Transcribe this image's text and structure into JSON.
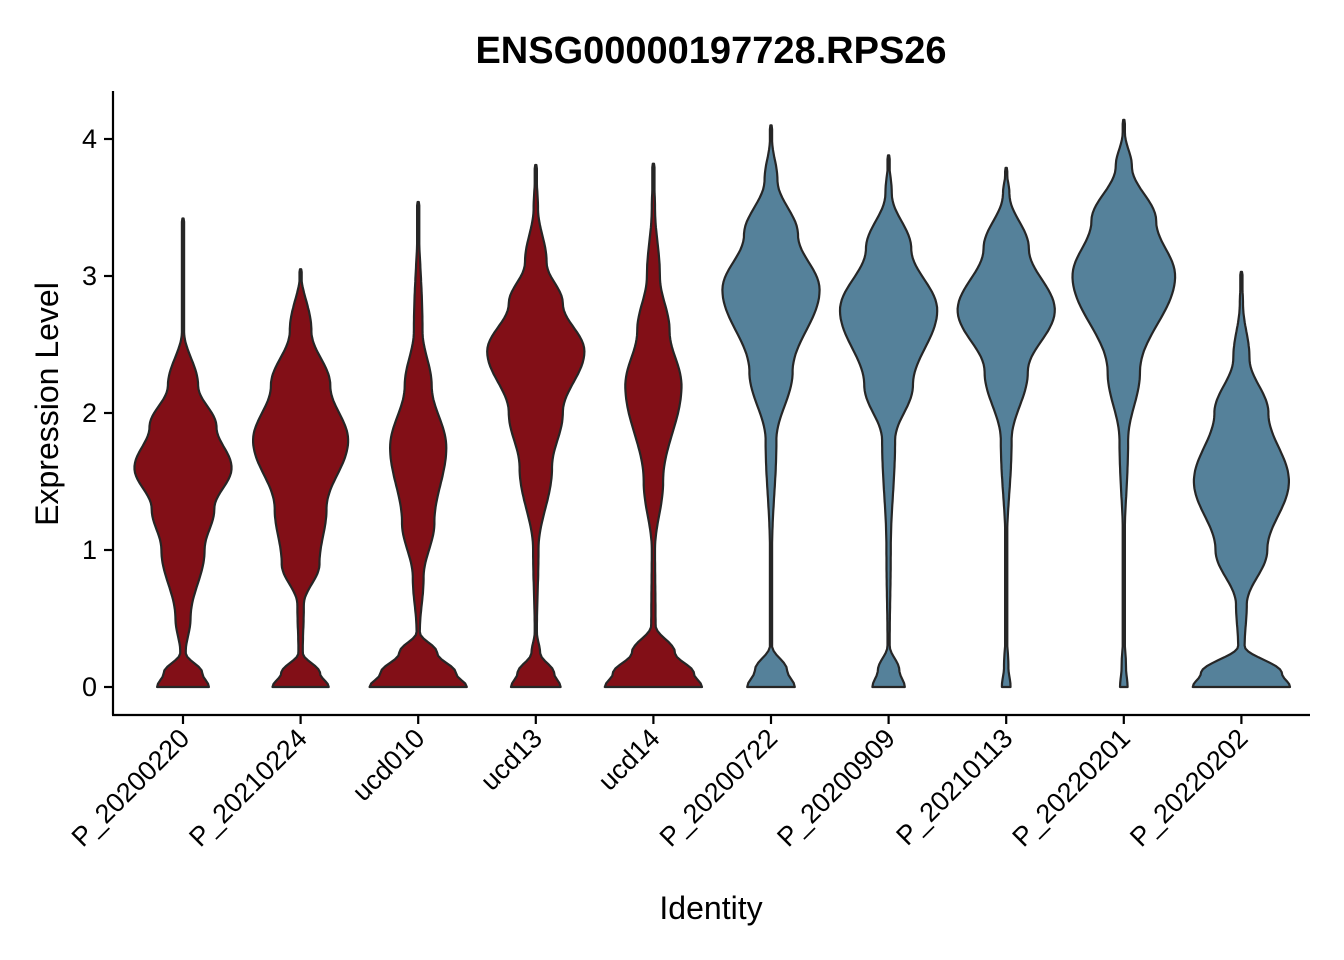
{
  "chart_data": {
    "type": "violin",
    "title": "ENSG00000197728.RPS26",
    "xlabel": "Identity",
    "ylabel": "Expression Level",
    "ylim": [
      -0.2,
      4.35
    ],
    "yticks": [
      0,
      1,
      2,
      3,
      4
    ],
    "grid": false,
    "legend": "none",
    "categories": [
      "P_20200220",
      "P_20210224",
      "ucd010",
      "ucd13",
      "ucd14",
      "P_20200722",
      "P_20200909",
      "P_20210113",
      "P_20220201",
      "P_20220202"
    ],
    "colors": [
      "#820f17",
      "#820f17",
      "#820f17",
      "#820f17",
      "#820f17",
      "#55819a",
      "#55819a",
      "#55819a",
      "#55819a",
      "#55819a"
    ],
    "violins": [
      {
        "max": 3.42,
        "profile": [
          [
            0,
            0.48
          ],
          [
            0.1,
            0.36
          ],
          [
            0.25,
            0.05
          ],
          [
            0.5,
            0.14
          ],
          [
            1.0,
            0.4
          ],
          [
            1.3,
            0.58
          ],
          [
            1.6,
            0.9
          ],
          [
            1.9,
            0.62
          ],
          [
            2.2,
            0.28
          ],
          [
            2.6,
            0.02
          ]
        ]
      },
      {
        "max": 3.05,
        "profile": [
          [
            0,
            0.52
          ],
          [
            0.1,
            0.36
          ],
          [
            0.25,
            0.04
          ],
          [
            0.6,
            0.06
          ],
          [
            0.9,
            0.35
          ],
          [
            1.3,
            0.48
          ],
          [
            1.8,
            0.88
          ],
          [
            2.2,
            0.55
          ],
          [
            2.6,
            0.2
          ]
        ]
      },
      {
        "max": 3.54,
        "profile": [
          [
            0,
            0.9
          ],
          [
            0.1,
            0.7
          ],
          [
            0.25,
            0.35
          ],
          [
            0.4,
            0.03
          ],
          [
            0.8,
            0.1
          ],
          [
            1.2,
            0.3
          ],
          [
            1.75,
            0.52
          ],
          [
            2.2,
            0.25
          ],
          [
            2.6,
            0.08
          ]
        ]
      },
      {
        "max": 3.81,
        "profile": [
          [
            0,
            0.46
          ],
          [
            0.1,
            0.34
          ],
          [
            0.25,
            0.08
          ],
          [
            0.4,
            0.02
          ],
          [
            1.0,
            0.05
          ],
          [
            1.6,
            0.3
          ],
          [
            2.0,
            0.5
          ],
          [
            2.45,
            0.9
          ],
          [
            2.8,
            0.5
          ],
          [
            3.1,
            0.2
          ],
          [
            3.5,
            0.04
          ]
        ]
      },
      {
        "max": 3.82,
        "profile": [
          [
            0,
            0.9
          ],
          [
            0.1,
            0.75
          ],
          [
            0.25,
            0.4
          ],
          [
            0.45,
            0.04
          ],
          [
            1.0,
            0.03
          ],
          [
            1.5,
            0.18
          ],
          [
            2.2,
            0.52
          ],
          [
            2.6,
            0.3
          ],
          [
            3.0,
            0.12
          ],
          [
            3.5,
            0.03
          ]
        ]
      },
      {
        "max": 4.1,
        "profile": [
          [
            0,
            0.44
          ],
          [
            0.12,
            0.3
          ],
          [
            0.3,
            0.02
          ],
          [
            1.0,
            0.02
          ],
          [
            1.8,
            0.1
          ],
          [
            2.3,
            0.4
          ],
          [
            2.9,
            0.9
          ],
          [
            3.3,
            0.5
          ],
          [
            3.7,
            0.12
          ],
          [
            4.0,
            0.02
          ]
        ]
      },
      {
        "max": 3.88,
        "profile": [
          [
            0,
            0.3
          ],
          [
            0.12,
            0.2
          ],
          [
            0.3,
            0.02
          ],
          [
            1.0,
            0.04
          ],
          [
            1.8,
            0.12
          ],
          [
            2.2,
            0.45
          ],
          [
            2.75,
            0.9
          ],
          [
            3.2,
            0.42
          ],
          [
            3.6,
            0.06
          ]
        ]
      },
      {
        "max": 3.79,
        "profile": [
          [
            0,
            0.08
          ],
          [
            0.15,
            0.04
          ],
          [
            0.4,
            0.01
          ],
          [
            1.0,
            0.01
          ],
          [
            1.8,
            0.1
          ],
          [
            2.3,
            0.4
          ],
          [
            2.75,
            0.9
          ],
          [
            3.2,
            0.42
          ],
          [
            3.6,
            0.06
          ]
        ]
      },
      {
        "max": 4.14,
        "profile": [
          [
            0,
            0.07
          ],
          [
            0.15,
            0.04
          ],
          [
            0.4,
            0.01
          ],
          [
            1.0,
            0.01
          ],
          [
            1.8,
            0.08
          ],
          [
            2.3,
            0.3
          ],
          [
            3.0,
            0.95
          ],
          [
            3.4,
            0.6
          ],
          [
            3.8,
            0.15
          ],
          [
            4.05,
            0.02
          ]
        ]
      },
      {
        "max": 3.03,
        "profile": [
          [
            0,
            0.9
          ],
          [
            0.1,
            0.75
          ],
          [
            0.3,
            0.06
          ],
          [
            0.6,
            0.1
          ],
          [
            1.0,
            0.48
          ],
          [
            1.5,
            0.88
          ],
          [
            2.0,
            0.5
          ],
          [
            2.4,
            0.15
          ],
          [
            2.8,
            0.03
          ]
        ]
      }
    ]
  }
}
